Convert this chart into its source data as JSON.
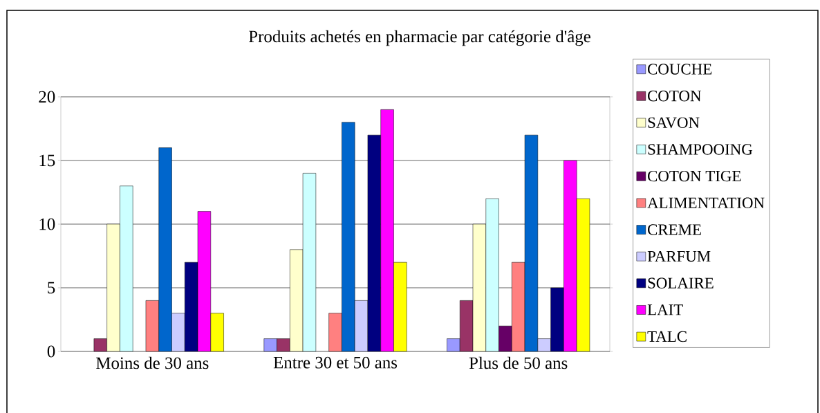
{
  "chart_data": {
    "type": "bar",
    "title": "Produits achetés en pharmacie par catégorie d'âge",
    "categories": [
      "Moins de 30 ans",
      "Entre 30 et 50 ans",
      "Plus de 50 ans"
    ],
    "series": [
      {
        "name": "COUCHE",
        "color": "#9999ff",
        "values": [
          0,
          1,
          1
        ]
      },
      {
        "name": "COTON",
        "color": "#993366",
        "values": [
          1,
          1,
          4
        ]
      },
      {
        "name": "SAVON",
        "color": "#ffffcc",
        "values": [
          10,
          8,
          10
        ]
      },
      {
        "name": "SHAMPOOING",
        "color": "#ccffff",
        "values": [
          13,
          14,
          12
        ]
      },
      {
        "name": "COTON TIGE",
        "color": "#660066",
        "values": [
          0,
          0,
          2
        ]
      },
      {
        "name": "ALIMENTATION",
        "color": "#ff8080",
        "values": [
          4,
          3,
          7
        ]
      },
      {
        "name": "CREME",
        "color": "#0066cc",
        "values": [
          16,
          18,
          17
        ]
      },
      {
        "name": "PARFUM",
        "color": "#ccccff",
        "values": [
          3,
          4,
          1
        ]
      },
      {
        "name": "SOLAIRE",
        "color": "#000080",
        "values": [
          7,
          17,
          5
        ]
      },
      {
        "name": "LAIT",
        "color": "#ff00ff",
        "values": [
          11,
          19,
          15
        ]
      },
      {
        "name": "TALC",
        "color": "#ffff00",
        "values": [
          3,
          7,
          12
        ]
      }
    ],
    "ylim": [
      0,
      20
    ],
    "yticks": [
      0,
      5,
      10,
      15,
      20
    ],
    "grid": "y",
    "legend": "right"
  }
}
